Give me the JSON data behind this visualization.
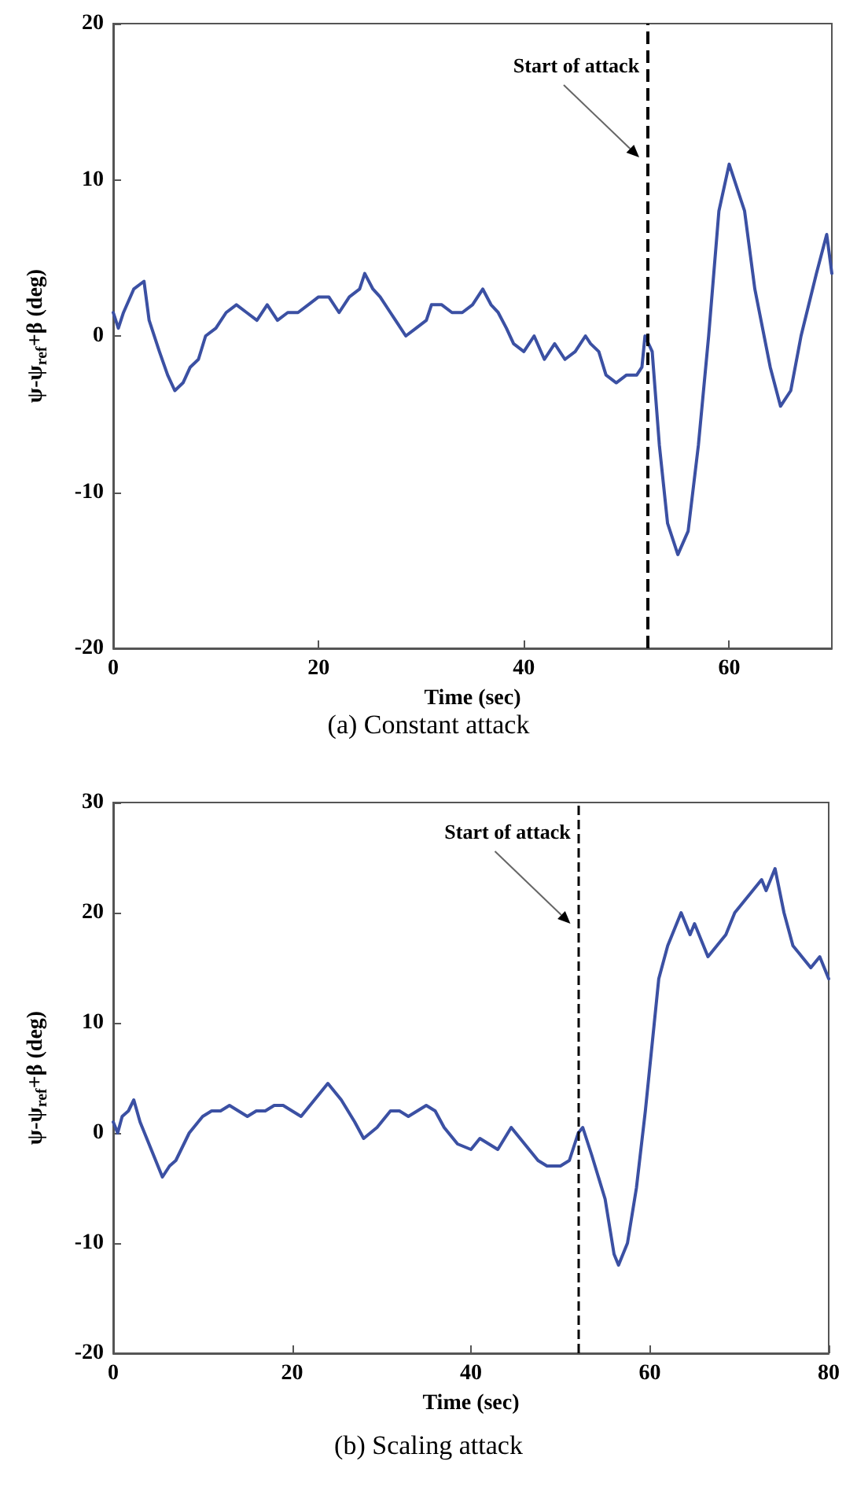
{
  "chart_data": [
    {
      "type": "line",
      "title": "(a) Constant attack",
      "xlabel": "Time (sec)",
      "ylabel": "ψ-ψ$_{ref}$+β (deg)",
      "xlim": [
        0,
        70
      ],
      "ylim": [
        -20,
        20
      ],
      "xticks": [
        0,
        20,
        40,
        60
      ],
      "yticks": [
        -20,
        -10,
        0,
        10,
        20
      ],
      "marker": "none",
      "line_style": "solid",
      "series": [
        {
          "color": "#3b50a3",
          "x": [
            0,
            0.5,
            1,
            2,
            3,
            3.5,
            4.5,
            5.3,
            6,
            6.8,
            7.5,
            8.3,
            9,
            10,
            11,
            12,
            13,
            14,
            15,
            16,
            17,
            18,
            19,
            20,
            21,
            22,
            23,
            24,
            24.5,
            25.3,
            26,
            27,
            27.5,
            28.5,
            29.5,
            30.5,
            31,
            32,
            33,
            34,
            35,
            36,
            36.8,
            37.5,
            38.3,
            39,
            40,
            41,
            42,
            43,
            44,
            45,
            46,
            46.5,
            47.3,
            48,
            49,
            50,
            51,
            51.5,
            51.8,
            52.5,
            53.2,
            54,
            55,
            56,
            57,
            58,
            59,
            60,
            61.5,
            62.5,
            64,
            65,
            66,
            67,
            68.5,
            69.5,
            70
          ],
          "values": [
            1.5,
            0.5,
            1.5,
            3,
            3.5,
            1,
            -1,
            -2.5,
            -3.5,
            -3,
            -2,
            -1.5,
            0,
            0.5,
            1.5,
            2,
            1.5,
            1,
            2,
            1,
            1.5,
            1.5,
            2,
            2.5,
            2.5,
            1.5,
            2.5,
            3,
            4,
            3,
            2.5,
            1.5,
            1,
            0,
            0.5,
            1,
            2,
            2,
            1.5,
            1.5,
            2,
            3,
            2,
            1.5,
            0.5,
            -0.5,
            -1,
            0,
            -1.5,
            -0.5,
            -1.5,
            -1,
            0,
            -0.5,
            -1,
            -2.5,
            -3,
            -2.5,
            -2.5,
            -2,
            0,
            -1,
            -7,
            -12,
            -14,
            -12.5,
            -7,
            0,
            8,
            11,
            8,
            3,
            -2,
            -4.5,
            -3.5,
            0,
            4,
            6.5,
            4
          ]
        }
      ],
      "ref_lines": [
        {
          "axis": "x",
          "value": 52,
          "color": "#000000",
          "line_style": "dashed"
        }
      ],
      "annotations": [
        "Start of attack"
      ]
    },
    {
      "type": "line",
      "title": "(b) Scaling attack",
      "xlabel": "Time (sec)",
      "ylabel": "ψ-ψ$_{ref}$+β (deg)",
      "xlim": [
        0,
        80
      ],
      "ylim": [
        -20,
        30
      ],
      "xticks": [
        0,
        20,
        40,
        60,
        80
      ],
      "yticks": [
        -20,
        -10,
        0,
        10,
        20,
        30
      ],
      "marker": "none",
      "line_style": "solid",
      "series": [
        {
          "color": "#3b50a3",
          "x": [
            0,
            0.5,
            1,
            1.7,
            2.3,
            3,
            3.5,
            4.5,
            5.5,
            6.3,
            7,
            8.5,
            10,
            11,
            12,
            13,
            14,
            15,
            16,
            17,
            18,
            19,
            20,
            21,
            22.5,
            24,
            25.5,
            27,
            28,
            29.5,
            31,
            32,
            33,
            34,
            35,
            36,
            37,
            38.5,
            40,
            41,
            42,
            43,
            44.5,
            46,
            47.5,
            48.5,
            50,
            51,
            52,
            52.5,
            53.5,
            55,
            56,
            56.5,
            57.5,
            58.5,
            59.5,
            60.5,
            61,
            62,
            63,
            63.5,
            64.5,
            65,
            66,
            66.5,
            67.5,
            68.5,
            69.5,
            70.5,
            71.5,
            72.5,
            73,
            74,
            75,
            76,
            77,
            78,
            79,
            80
          ],
          "values": [
            1,
            0,
            1.5,
            2,
            3,
            1,
            0,
            -2,
            -4,
            -3,
            -2.5,
            0,
            1.5,
            2,
            2,
            2.5,
            2,
            1.5,
            2,
            2,
            2.5,
            2.5,
            2,
            1.5,
            3,
            4.5,
            3,
            1,
            -0.5,
            0.5,
            2,
            2,
            1.5,
            2,
            2.5,
            2,
            0.5,
            -1,
            -1.5,
            -0.5,
            -1,
            -1.5,
            0.5,
            -1,
            -2.5,
            -3,
            -3,
            -2.5,
            0,
            0.5,
            -2,
            -6,
            -11,
            -12,
            -10,
            -5,
            2,
            10,
            14,
            17,
            19,
            20,
            18,
            19,
            17,
            16,
            17,
            18,
            20,
            21,
            22,
            23,
            22,
            24,
            20,
            17,
            16,
            15,
            16,
            14
          ]
        }
      ],
      "ref_lines": [
        {
          "axis": "x",
          "value": 52,
          "color": "#000000",
          "line_style": "dashed"
        }
      ],
      "annotations": [
        "Start of attack"
      ]
    }
  ]
}
